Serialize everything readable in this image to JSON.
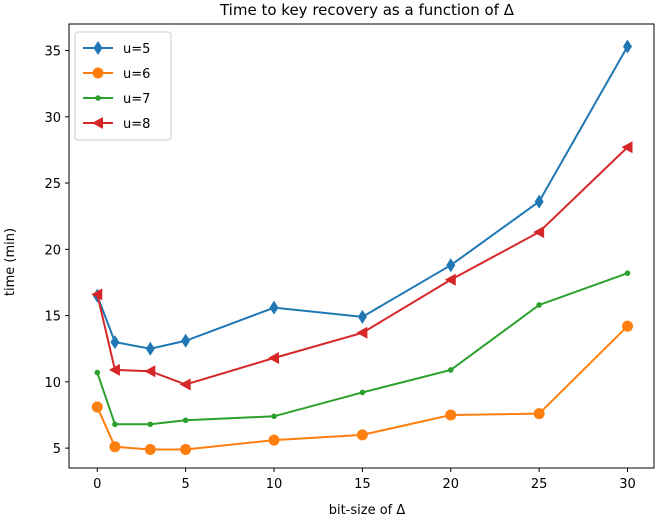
{
  "chart_data": {
    "type": "line",
    "title": "Time to key recovery as a function of Δ",
    "xlabel": "bit-size of Δ",
    "ylabel": "time (min)",
    "x": [
      0,
      1,
      3,
      5,
      10,
      15,
      20,
      25,
      30
    ],
    "xticks": [
      0,
      5,
      10,
      15,
      20,
      25,
      30
    ],
    "yticks": [
      5,
      10,
      15,
      20,
      25,
      30,
      35
    ],
    "xlim": [
      -1.6,
      31.5
    ],
    "ylim": [
      3.5,
      37.0
    ],
    "legend_position": "top-left",
    "series": [
      {
        "name": "u=5",
        "color": "#1f77b4",
        "marker": "diamond",
        "values": [
          16.5,
          13.0,
          12.5,
          13.1,
          15.6,
          14.9,
          18.8,
          23.6,
          35.3
        ]
      },
      {
        "name": "u=6",
        "color": "#ff7f0e",
        "marker": "circle",
        "values": [
          8.1,
          5.1,
          4.9,
          4.9,
          5.6,
          6.0,
          7.5,
          7.6,
          14.2
        ]
      },
      {
        "name": "u=7",
        "color": "#2ca02c",
        "marker": "point",
        "values": [
          10.7,
          6.8,
          6.8,
          7.1,
          7.4,
          9.2,
          10.9,
          15.8,
          18.2
        ]
      },
      {
        "name": "u=8",
        "color": "#d62728",
        "marker": "triangle-left",
        "values": [
          16.6,
          10.9,
          10.8,
          9.8,
          11.8,
          13.7,
          17.7,
          21.3,
          27.7
        ]
      }
    ]
  }
}
